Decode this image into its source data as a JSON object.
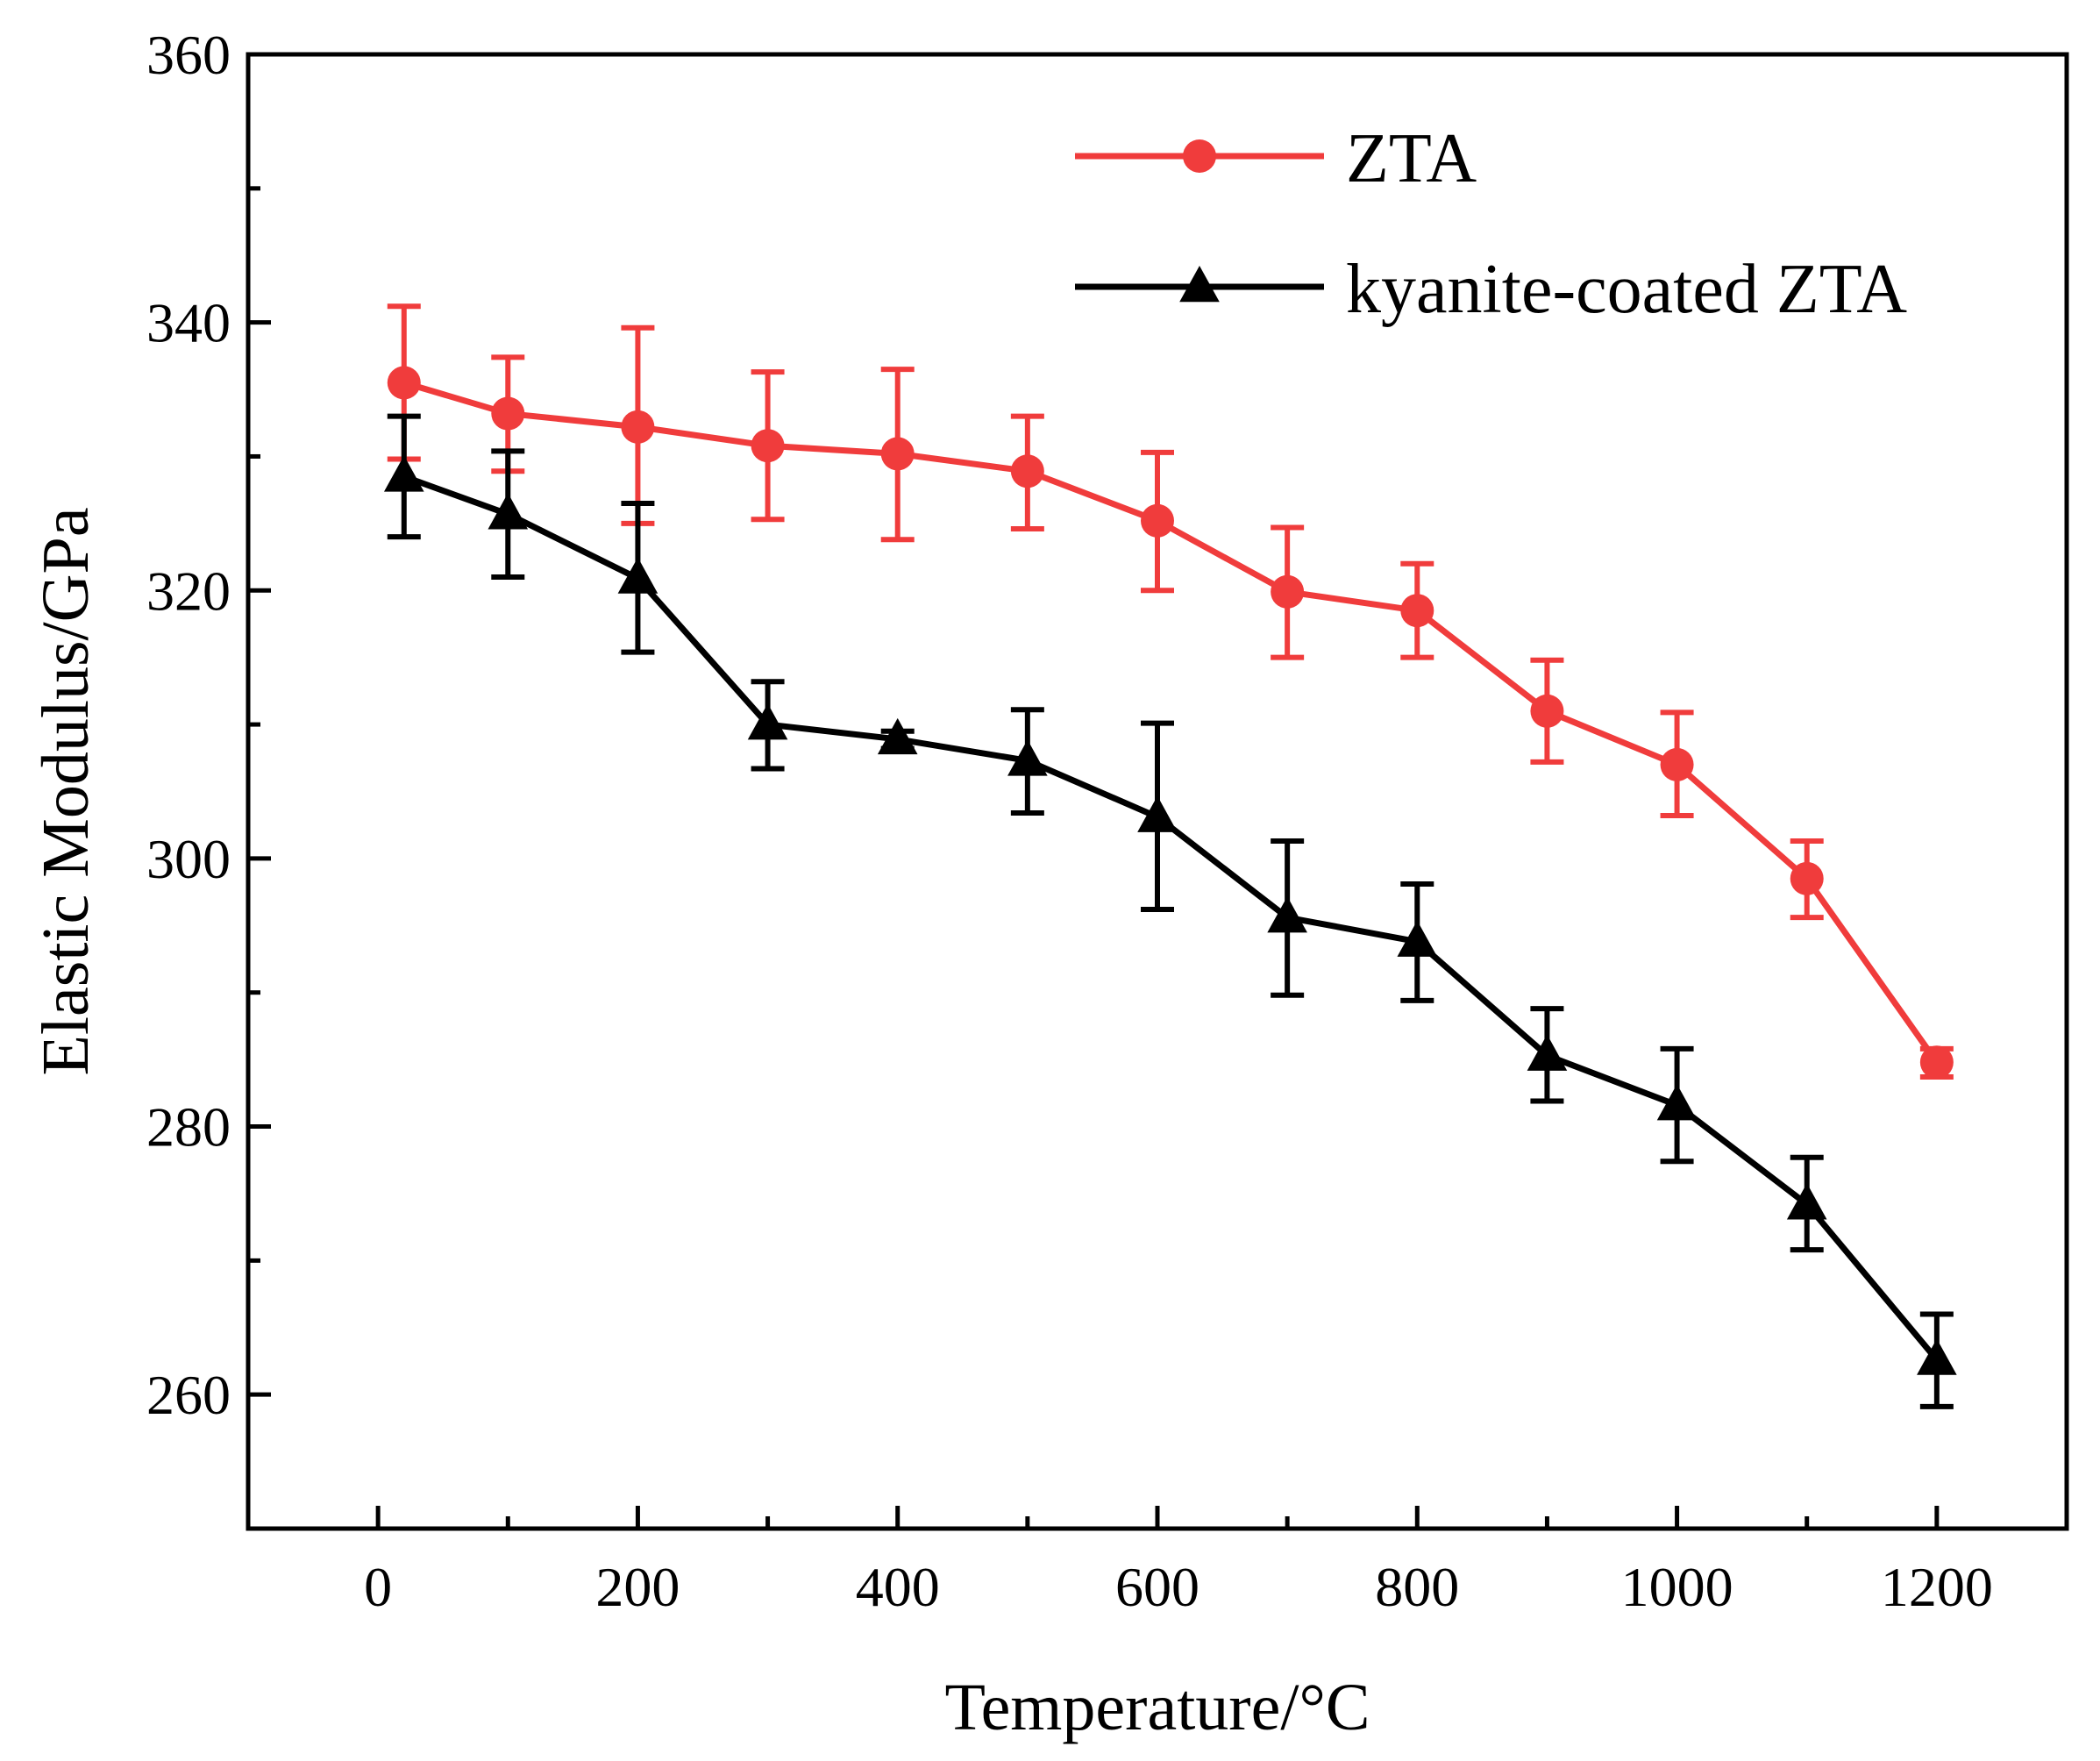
{
  "chart_data": {
    "type": "line",
    "title": "",
    "xlabel": "Temperature/°C",
    "ylabel": "Elastic Modulus/GPa",
    "xlim": [
      -100,
      1300
    ],
    "ylim": [
      250,
      360
    ],
    "x_major_ticks": [
      0,
      200,
      400,
      600,
      800,
      1000,
      1200
    ],
    "x_minor_ticks": [
      100,
      300,
      500,
      700,
      900,
      1100
    ],
    "y_major_ticks": [
      260,
      280,
      300,
      320,
      340,
      360
    ],
    "y_minor_ticks": [
      270,
      290,
      310,
      330,
      350
    ],
    "x_tick_labels": [
      "0",
      "200",
      "400",
      "600",
      "800",
      "1000",
      "1200"
    ],
    "y_tick_labels": [
      "260",
      "280",
      "300",
      "320",
      "340",
      "360"
    ],
    "grid": false,
    "legend_position": "top-right",
    "series": [
      {
        "name": "ZTA",
        "color": "#f03c3c",
        "marker": "circle",
        "x": [
          20,
          100,
          200,
          300,
          400,
          500,
          600,
          700,
          800,
          900,
          1000,
          1100,
          1200
        ],
        "values": [
          335.5,
          333.2,
          332.2,
          330.8,
          330.2,
          328.9,
          325.2,
          319.9,
          318.5,
          311.0,
          307.0,
          298.5,
          284.8
        ],
        "error_upper": [
          341.2,
          337.4,
          339.6,
          336.3,
          336.5,
          333.0,
          330.3,
          324.7,
          322.0,
          314.8,
          310.9,
          301.3,
          285.8
        ],
        "error_lower": [
          329.8,
          328.9,
          325.0,
          325.3,
          323.8,
          324.6,
          320.0,
          315.0,
          315.0,
          307.2,
          303.2,
          295.6,
          283.7
        ]
      },
      {
        "name": "kyanite-coated ZTA",
        "color": "#000000",
        "marker": "triangle",
        "x": [
          20,
          100,
          200,
          300,
          400,
          500,
          600,
          700,
          800,
          900,
          1000,
          1100,
          1200
        ],
        "values": [
          328.5,
          325.7,
          320.9,
          310.0,
          308.9,
          307.3,
          303.1,
          295.6,
          293.8,
          285.3,
          281.6,
          274.2,
          262.6
        ],
        "error_upper": [
          333.0,
          330.4,
          326.5,
          313.2,
          309.5,
          311.1,
          310.1,
          301.3,
          298.1,
          288.8,
          285.8,
          277.7,
          266.0
        ],
        "error_lower": [
          324.0,
          321.0,
          315.4,
          306.7,
          308.2,
          303.4,
          296.2,
          289.8,
          289.4,
          281.9,
          277.4,
          270.8,
          259.1
        ]
      }
    ]
  }
}
